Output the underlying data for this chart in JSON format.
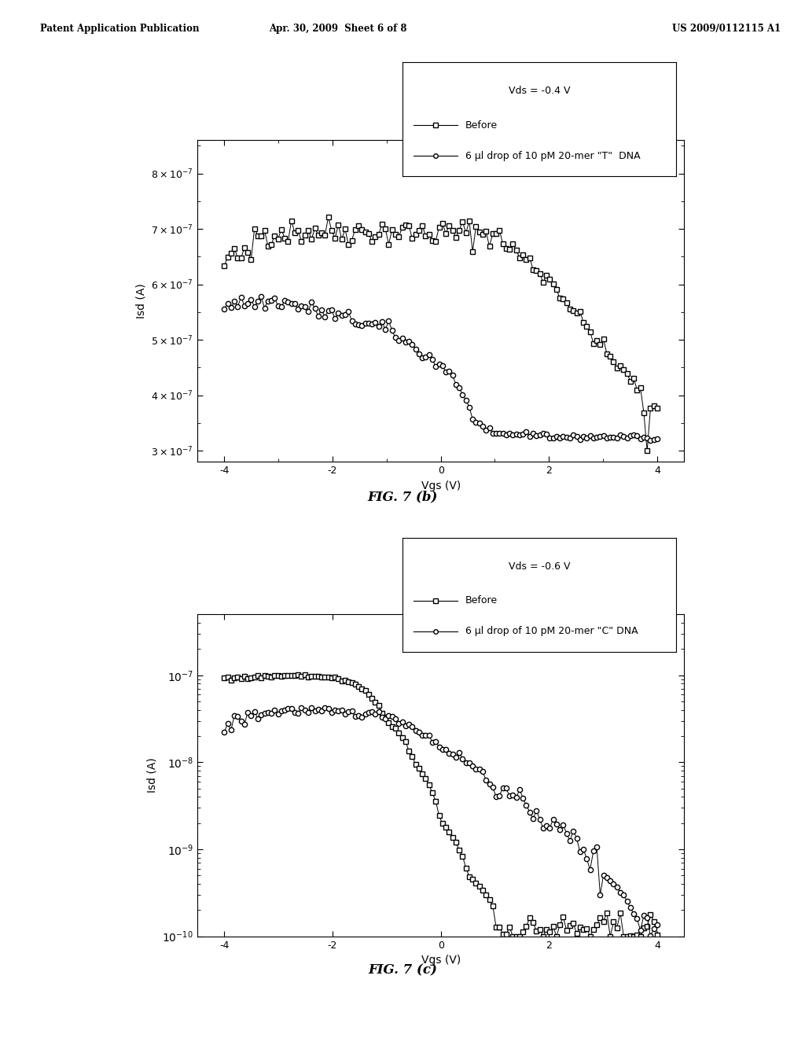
{
  "header_left": "Patent Application Publication",
  "header_center": "Apr. 30, 2009  Sheet 6 of 8",
  "header_right": "US 2009/0112115 A1",
  "fig_label_b": "FIG. 7 (b)",
  "fig_label_c": "FIG. 7 (c)",
  "plot_b": {
    "vds_label": "Vds = -0.4 V",
    "legend1": "Before",
    "legend2": "6 μl drop of 10 pM 20-mer \"T\"  DNA",
    "xlabel": "Vgs (V)",
    "ylabel": "Isd (A)",
    "xlim": [
      -4.5,
      4.5
    ],
    "ylim": [
      2.8e-07,
      8.6e-07
    ],
    "ytick_vals": [
      3e-07,
      4e-07,
      5e-07,
      6e-07,
      7e-07,
      8e-07
    ],
    "xticks": [
      -4,
      -2,
      0,
      2,
      4
    ]
  },
  "plot_c": {
    "vds_label": "Vds = -0.6 V",
    "legend1": "Before",
    "legend2": "6 μl drop of 10 pM 20-mer \"C\" DNA",
    "xlabel": "Vgs (V)",
    "ylabel": "Isd (A)",
    "xlim": [
      -4.5,
      4.5
    ],
    "ylim": [
      1e-10,
      5e-07
    ],
    "xticks": [
      -4,
      -2,
      0,
      2,
      4
    ]
  },
  "background_color": "#ffffff",
  "text_color": "#000000"
}
